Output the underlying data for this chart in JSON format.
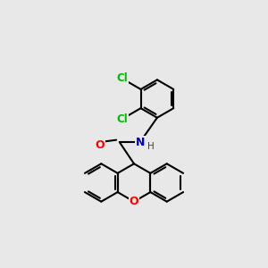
{
  "background_color": "#e8e8e8",
  "bond_color": "#000000",
  "atom_colors": {
    "O": "#ff0000",
    "N": "#0000cc",
    "Cl": "#00bb00",
    "H": "#404040"
  },
  "bond_width": 1.5,
  "figsize": [
    3.0,
    3.0
  ],
  "dpi": 100,
  "ring_r": 0.72
}
